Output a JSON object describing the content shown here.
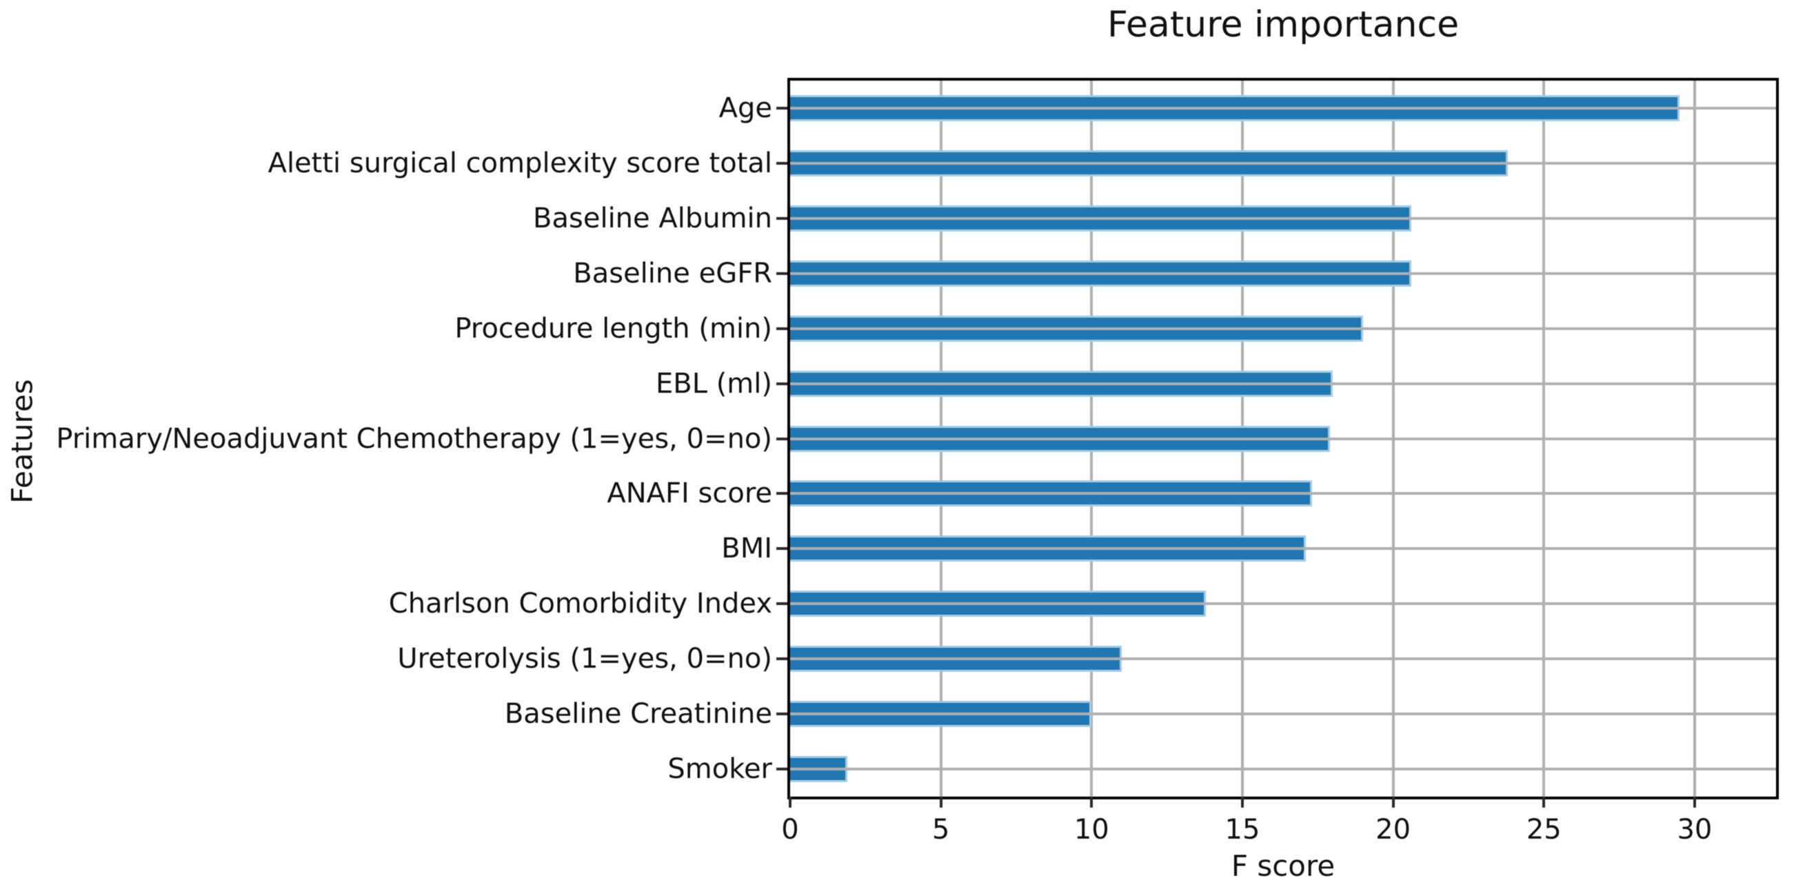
{
  "figure": {
    "title": "Feature importance",
    "xlabel": "F score",
    "ylabel": "Features"
  },
  "chart_data": {
    "type": "bar",
    "orientation": "horizontal",
    "title": "Feature importance",
    "xlabel": "F score",
    "ylabel": "Features",
    "categories": [
      "Age",
      "Aletti surgical complexity score total",
      "Baseline Albumin",
      "Baseline eGFR",
      "Procedure length (min)",
      "EBL (ml)",
      "Primary/Neoadjuvant Chemotherapy (1=yes, 0=no)",
      "ANAFI score",
      "BMI",
      "Charlson Comorbidity Index",
      "Ureterolysis (1=yes, 0=no)",
      "Baseline Creatinine",
      "Smoker"
    ],
    "values": [
      29.5,
      23.8,
      20.6,
      20.6,
      19.0,
      18.0,
      17.9,
      17.3,
      17.1,
      13.8,
      11.0,
      10.0,
      1.9
    ],
    "xticks": [
      0,
      5,
      10,
      15,
      20,
      25,
      30
    ],
    "xlim": [
      0,
      32.7
    ],
    "grid": true,
    "legend": false,
    "colors": {
      "bar_fill": "#1f77b4",
      "bar_edge": "#a6cbe3",
      "gridline": "#b0b0b0",
      "spine": "#000000",
      "text": "#111111",
      "background": "#ffffff"
    }
  }
}
